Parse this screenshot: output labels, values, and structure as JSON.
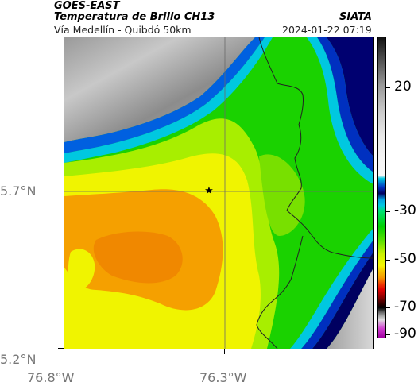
{
  "header": {
    "satellite": "GOES-EAST",
    "product": "Temperatura de Brillo CH13",
    "region": "Vía Medellín - Quibdó 50km",
    "org": "SIATA",
    "datetime": "2024-01-22 07:19"
  },
  "map": {
    "lat_labels": [
      "5.7°N",
      "5.2°N"
    ],
    "lon_labels": [
      "76.8°W",
      "76.3°W"
    ],
    "marker": "star-marker"
  },
  "colorbar": {
    "ticks": [
      "20",
      "-30",
      "-50",
      "-70",
      "-90"
    ],
    "colors": {
      "warm_gray_light": "#e8e8e8",
      "warm_gray_dark": "#222222",
      "cyan": "#00c8e0",
      "blue": "#0030c0",
      "navy": "#000060",
      "green": "#00d000",
      "yellow_green": "#c8f000",
      "yellow": "#f5f500",
      "orange": "#f59a00",
      "red": "#e00000",
      "dark_red": "#500000",
      "magenta": "#d040d0"
    }
  }
}
